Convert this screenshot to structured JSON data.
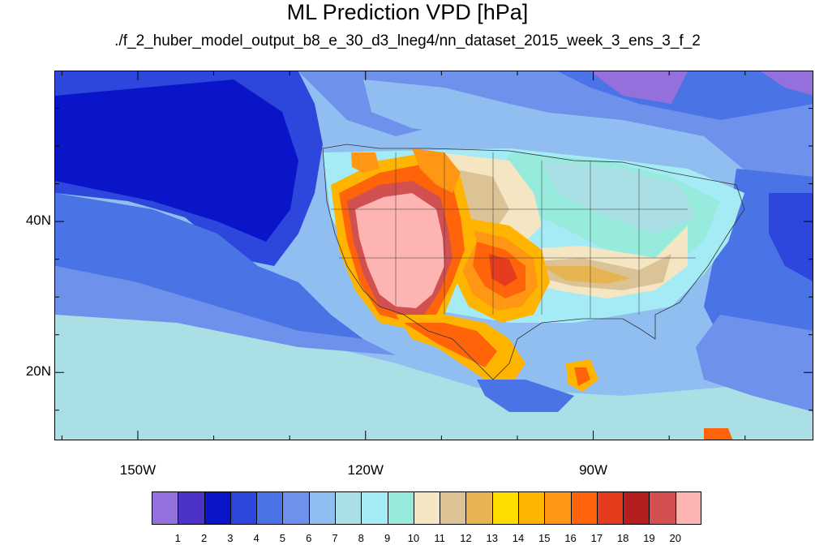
{
  "title": "ML Prediction VPD [hPa]",
  "subtitle": "./f_2_huber_model_output_b8_e_30_d3_lneg4/nn_dataset_2015_week_3_ens_3_f_2",
  "map": {
    "lon_range": [
      -161,
      -61
    ],
    "lat_range": [
      11,
      60
    ],
    "lat_ticks": [
      {
        "value": 40,
        "label": "40N"
      },
      {
        "value": 20,
        "label": "20N"
      }
    ],
    "lon_ticks": [
      {
        "value": -150,
        "label": "150W"
      },
      {
        "value": -120,
        "label": "120W"
      },
      {
        "value": -90,
        "label": "90W"
      }
    ]
  },
  "legend": {
    "colors": [
      "#9370db",
      "#4b32c8",
      "#0a14c8",
      "#2d46dc",
      "#4a73e6",
      "#6e91eb",
      "#91bef0",
      "#aadfe6",
      "#a5ebf5",
      "#96ebdc",
      "#f5e6c3",
      "#dcc396",
      "#e6b450",
      "#ffdc00",
      "#ffb400",
      "#ff9614",
      "#ff640a",
      "#e63c1e",
      "#b41e1e",
      "#d25050",
      "#ffb4b4"
    ],
    "labels": [
      "1",
      "2",
      "3",
      "4",
      "5",
      "6",
      "7",
      "8",
      "9",
      "10",
      "11",
      "12",
      "13",
      "14",
      "15",
      "16",
      "17",
      "18",
      "19",
      "20"
    ]
  }
}
